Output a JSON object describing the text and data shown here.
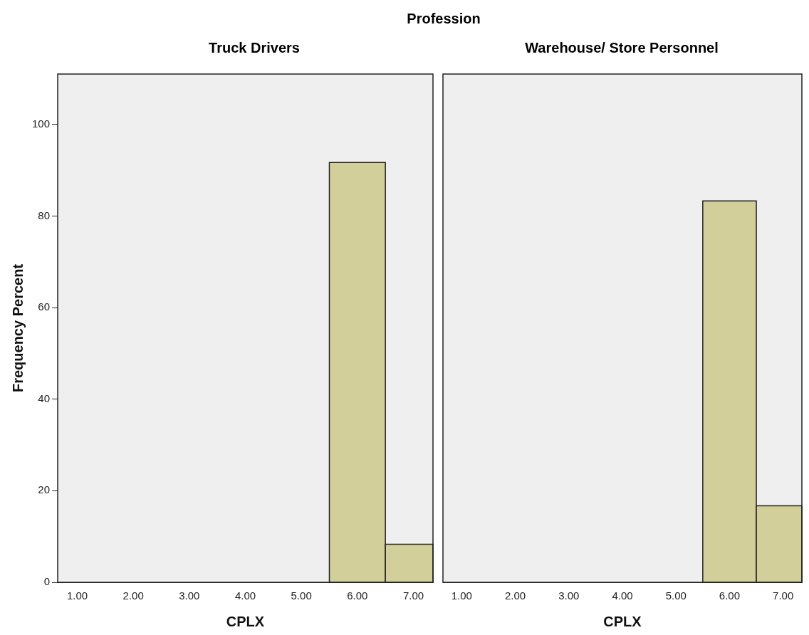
{
  "chart_data": [
    {
      "type": "histogram",
      "title": "Truck Drivers",
      "annotations": [
        "Profession"
      ],
      "xlabel": "CPLX",
      "ylabel": "Frequency Percent",
      "bins": [
        5.5,
        6.5,
        7.35
      ],
      "values": [
        91.7,
        8.3
      ],
      "color": "#d3cf9a",
      "xlim": [
        0.65,
        7.35
      ],
      "xticks": [
        {
          "value": 1,
          "label": "1.00"
        },
        {
          "value": 2,
          "label": "2.00"
        },
        {
          "value": 3,
          "label": "3.00"
        },
        {
          "value": 4,
          "label": "4.00"
        },
        {
          "value": 5,
          "label": "5.00"
        },
        {
          "value": 6,
          "label": "6.00"
        },
        {
          "value": 7,
          "label": "7.00"
        }
      ],
      "ylim": [
        0,
        111
      ],
      "yticks": [
        0,
        20,
        40,
        60,
        80,
        100
      ],
      "grid": false,
      "legend": false
    },
    {
      "type": "histogram",
      "title": "Warehouse/ Store Personnel",
      "xlabel": "CPLX",
      "bins": [
        5.5,
        6.5,
        7.35
      ],
      "values": [
        83.3,
        16.7
      ],
      "color": "#d3cf9a",
      "xlim": [
        0.65,
        7.35
      ],
      "xticks": [
        {
          "value": 1,
          "label": "1.00"
        },
        {
          "value": 2,
          "label": "2.00"
        },
        {
          "value": 3,
          "label": "3.00"
        },
        {
          "value": 4,
          "label": "4.00"
        },
        {
          "value": 5,
          "label": "5.00"
        },
        {
          "value": 6,
          "label": "6.00"
        },
        {
          "value": 7,
          "label": "7.00"
        }
      ],
      "ylim": [
        0,
        111
      ],
      "yticks": [
        0,
        20,
        40,
        60,
        80,
        100
      ],
      "grid": false,
      "legend": false,
      "tick_labels": "x"
    }
  ]
}
